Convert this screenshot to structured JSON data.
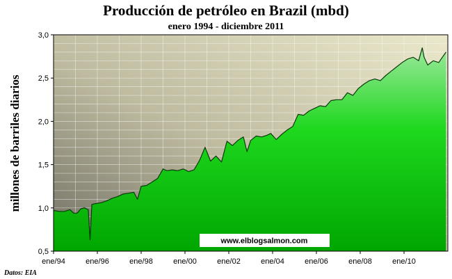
{
  "chart_data": {
    "type": "area",
    "title": "Producción de petróleo en Brazil (mbd)",
    "subtitle": "enero 1994 - diciembre 2011",
    "ylabel": "millones de barriles diarios",
    "xlabel": "",
    "ylim": [
      0.5,
      3.0
    ],
    "y_ticks": [
      "0,5",
      "1,0",
      "1,5",
      "2,0",
      "2,5",
      "3,0"
    ],
    "y_tick_values": [
      0.5,
      1.0,
      1.5,
      2.0,
      2.5,
      3.0
    ],
    "x_ticks": [
      "ene/94",
      "ene/96",
      "ene/98",
      "ene/00",
      "ene/02",
      "ene/04",
      "ene/06",
      "ene/08",
      "ene/10"
    ],
    "x_tick_years": [
      1994,
      1996,
      1998,
      2000,
      2002,
      2004,
      2006,
      2008,
      2010
    ],
    "x_range": [
      "1994-01",
      "2011-12"
    ],
    "grid": true,
    "fill_color": "#00cc00",
    "plot_background": "gradient grey-tan",
    "watermark": "www.elblogsalmon.com",
    "source": "Datos: EIA",
    "series": [
      {
        "points": [
          [
            "1994-01",
            0.97
          ],
          [
            "1994-04",
            0.96
          ],
          [
            "1994-07",
            0.96
          ],
          [
            "1994-10",
            0.98
          ],
          [
            "1994-12",
            0.94
          ],
          [
            "1995-02",
            0.94
          ],
          [
            "1995-04",
            0.99
          ],
          [
            "1995-06",
            1.0
          ],
          [
            "1995-08",
            0.98
          ],
          [
            "1995-09",
            0.63
          ],
          [
            "1995-10",
            1.04
          ],
          [
            "1995-12",
            1.05
          ],
          [
            "1996-03",
            1.06
          ],
          [
            "1996-06",
            1.08
          ],
          [
            "1996-09",
            1.11
          ],
          [
            "1996-12",
            1.13
          ],
          [
            "1997-03",
            1.16
          ],
          [
            "1997-06",
            1.17
          ],
          [
            "1997-09",
            1.18
          ],
          [
            "1997-11",
            1.1
          ],
          [
            "1998-01",
            1.25
          ],
          [
            "1998-04",
            1.26
          ],
          [
            "1998-07",
            1.3
          ],
          [
            "1998-10",
            1.34
          ],
          [
            "1999-01",
            1.45
          ],
          [
            "1999-03",
            1.43
          ],
          [
            "1999-06",
            1.44
          ],
          [
            "1999-09",
            1.43
          ],
          [
            "1999-12",
            1.45
          ],
          [
            "2000-03",
            1.42
          ],
          [
            "2000-06",
            1.44
          ],
          [
            "2000-09",
            1.55
          ],
          [
            "2000-12",
            1.7
          ],
          [
            "2001-03",
            1.54
          ],
          [
            "2001-06",
            1.6
          ],
          [
            "2001-09",
            1.53
          ],
          [
            "2001-12",
            1.77
          ],
          [
            "2002-03",
            1.72
          ],
          [
            "2002-06",
            1.78
          ],
          [
            "2002-09",
            1.82
          ],
          [
            "2002-11",
            1.65
          ],
          [
            "2003-01",
            1.78
          ],
          [
            "2003-04",
            1.83
          ],
          [
            "2003-07",
            1.82
          ],
          [
            "2003-10",
            1.84
          ],
          [
            "2003-12",
            1.86
          ],
          [
            "2004-03",
            1.79
          ],
          [
            "2004-06",
            1.85
          ],
          [
            "2004-09",
            1.9
          ],
          [
            "2004-12",
            1.94
          ],
          [
            "2005-03",
            2.08
          ],
          [
            "2005-06",
            2.07
          ],
          [
            "2005-09",
            2.12
          ],
          [
            "2005-12",
            2.15
          ],
          [
            "2006-03",
            2.18
          ],
          [
            "2006-06",
            2.17
          ],
          [
            "2006-09",
            2.24
          ],
          [
            "2006-12",
            2.25
          ],
          [
            "2007-03",
            2.25
          ],
          [
            "2007-06",
            2.33
          ],
          [
            "2007-09",
            2.3
          ],
          [
            "2007-12",
            2.38
          ],
          [
            "2008-03",
            2.43
          ],
          [
            "2008-06",
            2.47
          ],
          [
            "2008-09",
            2.49
          ],
          [
            "2008-12",
            2.47
          ],
          [
            "2009-03",
            2.53
          ],
          [
            "2009-06",
            2.58
          ],
          [
            "2009-09",
            2.63
          ],
          [
            "2009-12",
            2.68
          ],
          [
            "2010-03",
            2.72
          ],
          [
            "2010-06",
            2.74
          ],
          [
            "2010-09",
            2.7
          ],
          [
            "2010-11",
            2.85
          ],
          [
            "2010-12",
            2.74
          ],
          [
            "2011-02",
            2.65
          ],
          [
            "2011-05",
            2.7
          ],
          [
            "2011-08",
            2.68
          ],
          [
            "2011-10",
            2.74
          ],
          [
            "2011-12",
            2.8
          ]
        ]
      }
    ]
  }
}
